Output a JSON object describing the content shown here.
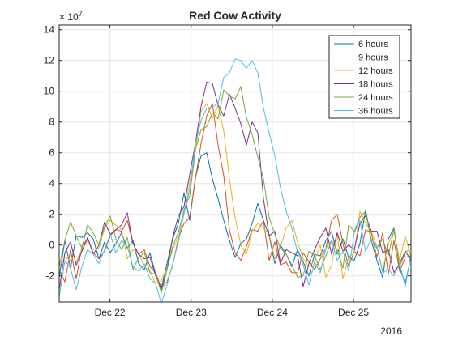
{
  "chart_data": {
    "type": "line",
    "title": "Red Cow Activity",
    "xlabel": "",
    "ylabel": "",
    "y_exponent": "× 10",
    "y_exponent_power": "7",
    "year_label": "2016",
    "x_ticks": [
      "Dec 22",
      "Dec 23",
      "Dec 24",
      "Dec 25"
    ],
    "y_ticks": [
      "-2",
      "0",
      "2",
      "4",
      "6",
      "8",
      "10",
      "12",
      "14"
    ],
    "x_range_days": [
      "Dec 21 09:00",
      "Dec 25 17:00"
    ],
    "ylim": [
      -3.7,
      14.3
    ],
    "grid": true,
    "legend_location": "top-right",
    "series": [
      {
        "name": "6 hours",
        "color": "#0072BD",
        "values": [
          -2.1,
          0.3,
          -1.5,
          0.6,
          0.5,
          0.8,
          0.4,
          -0.9,
          0.2,
          -0.5,
          0.1,
          0.8,
          -0.2,
          0.3,
          -1.2,
          -1.6,
          -0.5,
          -1.9,
          -2.8,
          -1.2,
          0.4,
          1.4,
          3.4,
          1.6,
          4.4,
          5.8,
          6.0,
          4.3,
          3.0,
          1.6,
          0.3,
          -0.8,
          0.1,
          0.4,
          1.4,
          2.7,
          1.6,
          0.6,
          -1.2,
          0.0,
          -0.6,
          -1.4,
          -0.3,
          -1.1,
          -2.0,
          -0.6,
          -0.7,
          0.3,
          0.9,
          -0.6,
          0.4,
          -0.8,
          -1.0,
          0.1,
          2.3,
          0.3,
          -1.0,
          -2.1,
          0.4,
          1.1,
          -1.5,
          -2.5,
          -0.7
        ]
      },
      {
        "name": "9 hours",
        "color": "#D95319",
        "values": [
          -1.6,
          -2.4,
          -0.3,
          -2.2,
          -0.1,
          0.4,
          -0.5,
          -0.9,
          -0.4,
          0.6,
          1.0,
          0.9,
          1.6,
          0.1,
          -0.6,
          -0.3,
          -1.4,
          -1.8,
          -2.8,
          -2.4,
          -1.3,
          0.4,
          1.4,
          1.8,
          4.3,
          6.6,
          8.4,
          9.2,
          6.5,
          4.5,
          1.0,
          -0.5,
          -1.0,
          -0.1,
          1.0,
          0.9,
          1.6,
          -1.0,
          0.2,
          -1.3,
          -1.1,
          -1.8,
          -1.8,
          -0.5,
          -1.1,
          -1.6,
          -0.9,
          -0.2,
          1.6,
          2.0,
          0.1,
          -1.4,
          -0.4,
          -0.7,
          1.0,
          0.8,
          -0.8,
          0.8,
          -1.9,
          0.3,
          -1.7,
          -0.8,
          -0.7
        ]
      },
      {
        "name": "12 hours",
        "color": "#EDB120",
        "values": [
          -1.4,
          -0.8,
          -1.0,
          -1.1,
          -0.3,
          0.3,
          -0.3,
          -0.2,
          1.1,
          1.6,
          1.3,
          1.0,
          -0.9,
          -0.3,
          -0.5,
          -1.4,
          -1.7,
          -2.5,
          -2.3,
          -1.5,
          -0.3,
          0.5,
          2.0,
          4.1,
          6.1,
          8.7,
          9.2,
          8.2,
          9.1,
          7.4,
          4.3,
          1.8,
          0.0,
          -0.6,
          0.9,
          1.4,
          1.1,
          0.7,
          -0.9,
          -0.1,
          1.1,
          1.6,
          0.2,
          -0.9,
          -1.4,
          -1.0,
          0.0,
          -2.1,
          -1.3,
          0.7,
          -2.2,
          -0.8,
          -0.5,
          2.2,
          1.4,
          0.9,
          -0.1,
          -1.7,
          0.1,
          0.9,
          -1.0,
          0.6,
          -0.8
        ]
      },
      {
        "name": "18 hours",
        "color": "#7E2F8E",
        "values": [
          -2.9,
          -0.5,
          0.2,
          -1.3,
          -0.4,
          0.5,
          -0.6,
          0.0,
          1.5,
          0.7,
          1.0,
          1.3,
          2.1,
          0.1,
          -0.6,
          -0.9,
          -0.8,
          -2.0,
          -2.9,
          -1.6,
          0.5,
          1.9,
          2.5,
          4.6,
          6.6,
          9.0,
          10.6,
          10.5,
          9.1,
          8.4,
          9.8,
          8.9,
          7.9,
          6.5,
          8.0,
          7.3,
          3.0,
          0.6,
          0.9,
          -1.2,
          -0.3,
          -0.5,
          -0.7,
          -2.7,
          -1.2,
          -0.3,
          0.5,
          1.1,
          -0.6,
          0.8,
          -0.4,
          0.0,
          -0.3,
          1.4,
          1.9,
          0.9,
          0.9,
          -0.5,
          -0.3,
          -1.8,
          -1.2,
          -0.4,
          -1.0
        ]
      },
      {
        "name": "24 hours",
        "color": "#77AC30",
        "values": [
          -1.4,
          0.3,
          1.5,
          0.6,
          -0.2,
          1.3,
          0.8,
          0.0,
          1.2,
          1.9,
          0.4,
          -0.3,
          0.5,
          -1.6,
          -0.8,
          -0.5,
          -1.8,
          -1.9,
          -3.1,
          -1.6,
          -0.1,
          0.8,
          2.3,
          3.2,
          6.2,
          7.5,
          7.7,
          8.6,
          8.2,
          10.1,
          9.7,
          9.5,
          10.3,
          8.3,
          7.2,
          5.7,
          4.3,
          1.8,
          0.7,
          -0.2,
          -0.6,
          -1.3,
          -2.1,
          -2.0,
          -0.4,
          -0.7,
          -1.6,
          -0.7,
          0.3,
          -0.3,
          -1.5,
          1.3,
          0.9,
          1.8,
          2.2,
          0.2,
          -0.2,
          0.4,
          -0.7,
          1.0,
          -1.4,
          -0.5,
          -0.2
        ]
      },
      {
        "name": "36 hours",
        "color": "#4DBEEE",
        "values": [
          -3.4,
          -1.0,
          -1.5,
          -2.9,
          -1.4,
          -0.3,
          -0.6,
          -1.2,
          -0.3,
          0.7,
          -0.5,
          0.3,
          -0.1,
          -1.4,
          -1.7,
          -1.2,
          -2.2,
          -2.5,
          -3.8,
          -2.6,
          -1.2,
          0.2,
          2.1,
          3.6,
          6.6,
          8.1,
          8.9,
          9.0,
          9.2,
          10.9,
          11.2,
          12.1,
          12.0,
          11.5,
          12.0,
          11.2,
          8.9,
          7.3,
          5.8,
          3.7,
          2.2,
          1.1,
          -0.5,
          -1.3,
          -2.6,
          -1.1,
          -1.8,
          -0.2,
          0.3,
          -1.0,
          -0.4,
          -1.7,
          0.8,
          1.6,
          -0.4,
          0.4,
          -0.1,
          -1.8,
          -1.6,
          -2.0,
          -1.2,
          -2.7,
          -0.6
        ]
      }
    ]
  }
}
